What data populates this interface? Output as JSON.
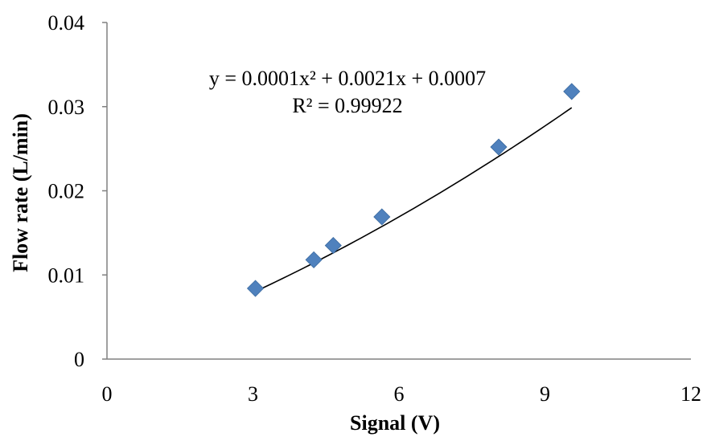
{
  "chart_data": {
    "type": "scatter",
    "xlabel": "Signal (V)",
    "ylabel": "Flow rate (L/min)",
    "xlim": [
      0,
      12
    ],
    "ylim": [
      0,
      0.04
    ],
    "x_ticks": [
      0,
      3,
      6,
      9,
      12
    ],
    "y_ticks": [
      0,
      0.01,
      0.02,
      0.03,
      0.04
    ],
    "x_tick_labels": [
      "0",
      "3",
      "6",
      "9",
      "12"
    ],
    "y_tick_labels": [
      "0",
      "0.01",
      "0.02",
      "0.03",
      "0.04"
    ],
    "grid": false,
    "marker": "diamond",
    "series": [
      {
        "x": [
          3.05,
          4.25,
          4.65,
          5.65,
          8.05,
          9.55
        ],
        "y": [
          0.0084,
          0.0118,
          0.0135,
          0.0169,
          0.0252,
          0.0318
        ]
      }
    ],
    "trendline": {
      "type": "polynomial",
      "coefficients": [
        0.0001,
        0.0021,
        0.0007
      ],
      "x_range": [
        3.05,
        9.55
      ]
    },
    "annotations": {
      "equation": "y = 0.0001x² + 0.0021x + 0.0007",
      "r_squared": "R² = 0.99922"
    },
    "colors": {
      "marker": "#4f81bd",
      "trendline": "#000000",
      "axis": "#808080"
    }
  }
}
